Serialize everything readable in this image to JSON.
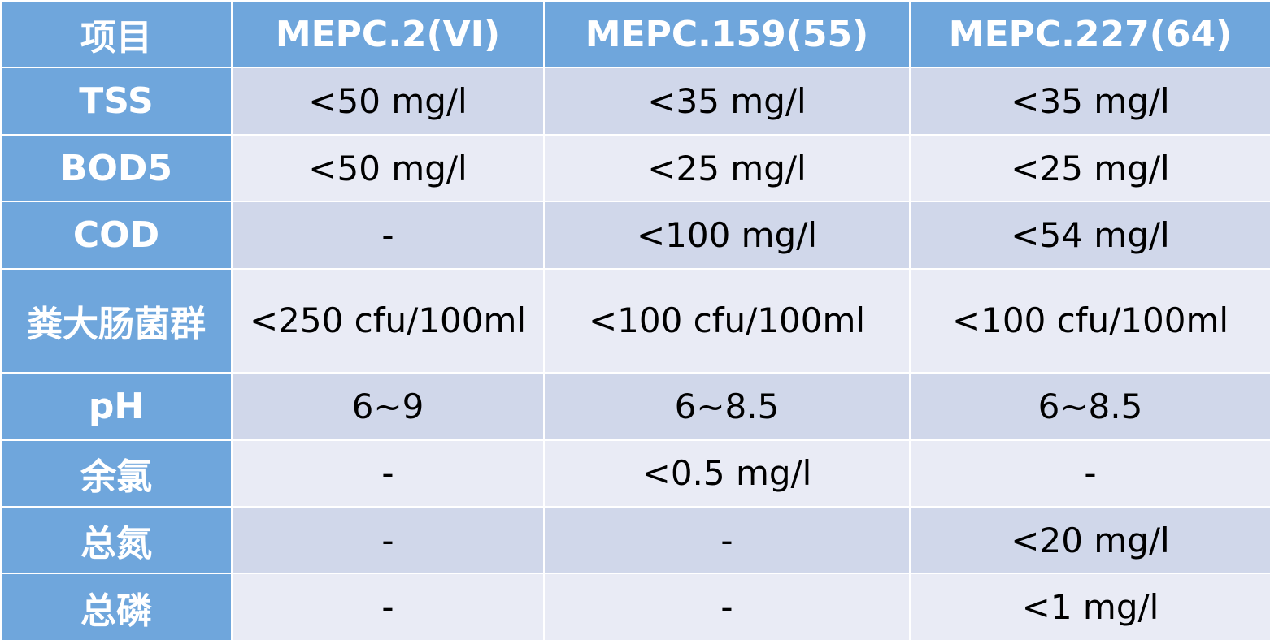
{
  "table": {
    "headers": [
      "项目",
      "MEPC.2(VI)",
      "MEPC.159(55)",
      "MEPC.227(64)"
    ],
    "rows": [
      {
        "label": "TSS",
        "values": [
          "<50 mg/l",
          "<35 mg/l",
          "<35 mg/l"
        ]
      },
      {
        "label": "BOD5",
        "values": [
          "<50 mg/l",
          "<25 mg/l",
          "<25 mg/l"
        ]
      },
      {
        "label": "COD",
        "values": [
          "-",
          "<100 mg/l",
          "<54 mg/l"
        ]
      },
      {
        "label": "粪大肠菌群",
        "values": [
          "<250 cfu/100ml",
          "<100 cfu/100ml",
          "<100 cfu/100ml"
        ]
      },
      {
        "label": "pH",
        "values": [
          "6~9",
          "6~8.5",
          "6~8.5"
        ]
      },
      {
        "label": "余氯",
        "values": [
          "-",
          "<0.5 mg/l",
          "-"
        ]
      },
      {
        "label": "总氮",
        "values": [
          "-",
          "-",
          "<20 mg/l"
        ]
      },
      {
        "label": "总磷",
        "values": [
          "-",
          "-",
          "<1 mg/l"
        ]
      }
    ]
  },
  "colors": {
    "header_bg": "#6fa6dc",
    "row_dark": "#d0d7ea",
    "row_light": "#e9ebf5",
    "header_text": "#ffffff",
    "value_text": "#000000"
  }
}
